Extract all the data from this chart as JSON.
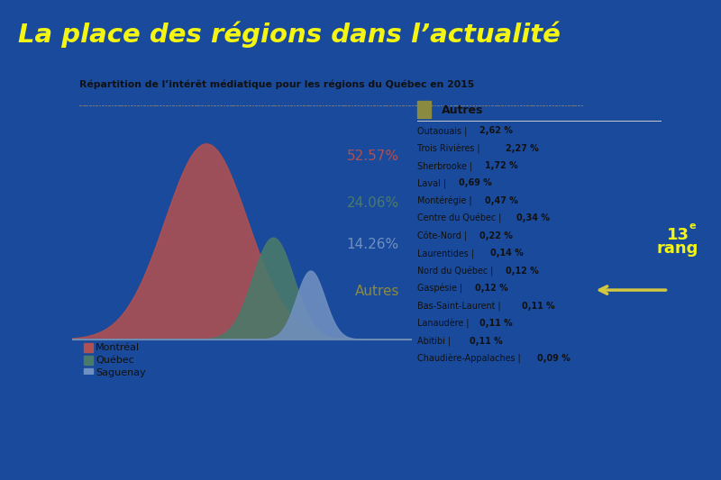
{
  "title_main": "La place des régions dans l’actualité",
  "chart_title": "Répartition de l’intérêt médiatique pour les régions du Québec en 2015",
  "bg_color": "#1a4a9b",
  "panel_color": "#ffffff",
  "title_color": "#f5f514",
  "montreal_color": "#b05050",
  "quebec_color": "#4a7a6a",
  "saguenay_color": "#7090c0",
  "autres_color": "#8a8a40",
  "montreal_pct": "52.57%",
  "quebec_pct": "24.06%",
  "saguenay_pct": "14.26%",
  "autres_label": "Autres",
  "autres_text_color": "#8a8a40",
  "arrow_color": "#d4c840",
  "rang_text": "13",
  "rang_sup": "e",
  "rang_word": "rang",
  "rang_color": "#f5f514",
  "legend_items": [
    "Montréal",
    "Québec",
    "Saguenay"
  ],
  "legend_colors": [
    "#b05050",
    "#4a7a6a",
    "#7090c0"
  ],
  "autres_entries": [
    [
      "Outaouais",
      "2,62 %"
    ],
    [
      "Trois Rivières",
      "2,27 %"
    ],
    [
      "Sherbrooke",
      "1,72 %"
    ],
    [
      "Laval",
      "0,69 %"
    ],
    [
      "Montérégie",
      "0,47 %"
    ],
    [
      "Centre du Québec",
      "0,34 %"
    ],
    [
      "Côte-Nord",
      "0,22 %"
    ],
    [
      "Laurentides",
      "0,14 %"
    ],
    [
      "Nord du Québec",
      "0,12 %"
    ],
    [
      "Gaspésie",
      "0,12 %"
    ],
    [
      "Bas-Saint-Laurent",
      "0,11 %"
    ],
    [
      "Lanaudère",
      "0,11 %"
    ],
    [
      "Abitibi",
      "0,11 %"
    ],
    [
      "Chaudière-Appalaches",
      "0,09 %"
    ]
  ],
  "arrow_entry_index": 9,
  "hatching_color": "#888888",
  "bell_mu_m": -0.4,
  "bell_sig_m": 1.05,
  "bell_mu_q": 1.3,
  "bell_sig_q": 0.52,
  "bell_scale_q": 0.52,
  "bell_mu_s": 2.25,
  "bell_sig_s": 0.36,
  "bell_scale_s": 0.35
}
